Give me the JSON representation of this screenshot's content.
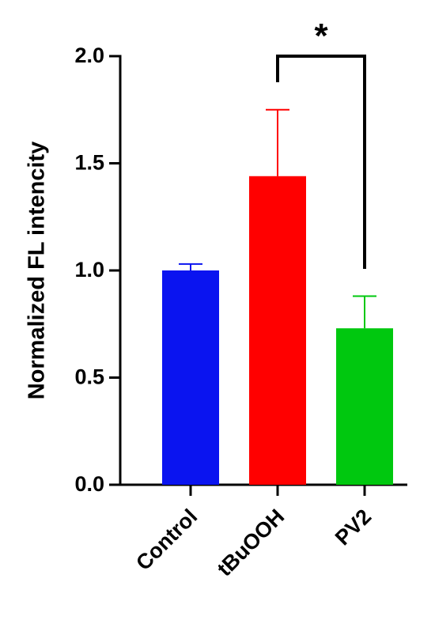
{
  "chart_data": {
    "type": "bar",
    "y_label": "Normalized FL intencity",
    "categories": [
      "Control",
      "tBuOOH",
      "PV2"
    ],
    "values": [
      1.0,
      1.44,
      0.73
    ],
    "errors": [
      0.03,
      0.31,
      0.15
    ],
    "colors": [
      "#0a14f0",
      "#ff0000",
      "#00c80f"
    ],
    "ylim": [
      0,
      2.0
    ],
    "yticks": [
      {
        "value": 0,
        "label": "0.0"
      },
      0.5,
      {
        "value": 1.0,
        "label": "1.0"
      },
      1.5,
      {
        "value": 2.0,
        "label": "2.0"
      }
    ],
    "significance": "*"
  }
}
